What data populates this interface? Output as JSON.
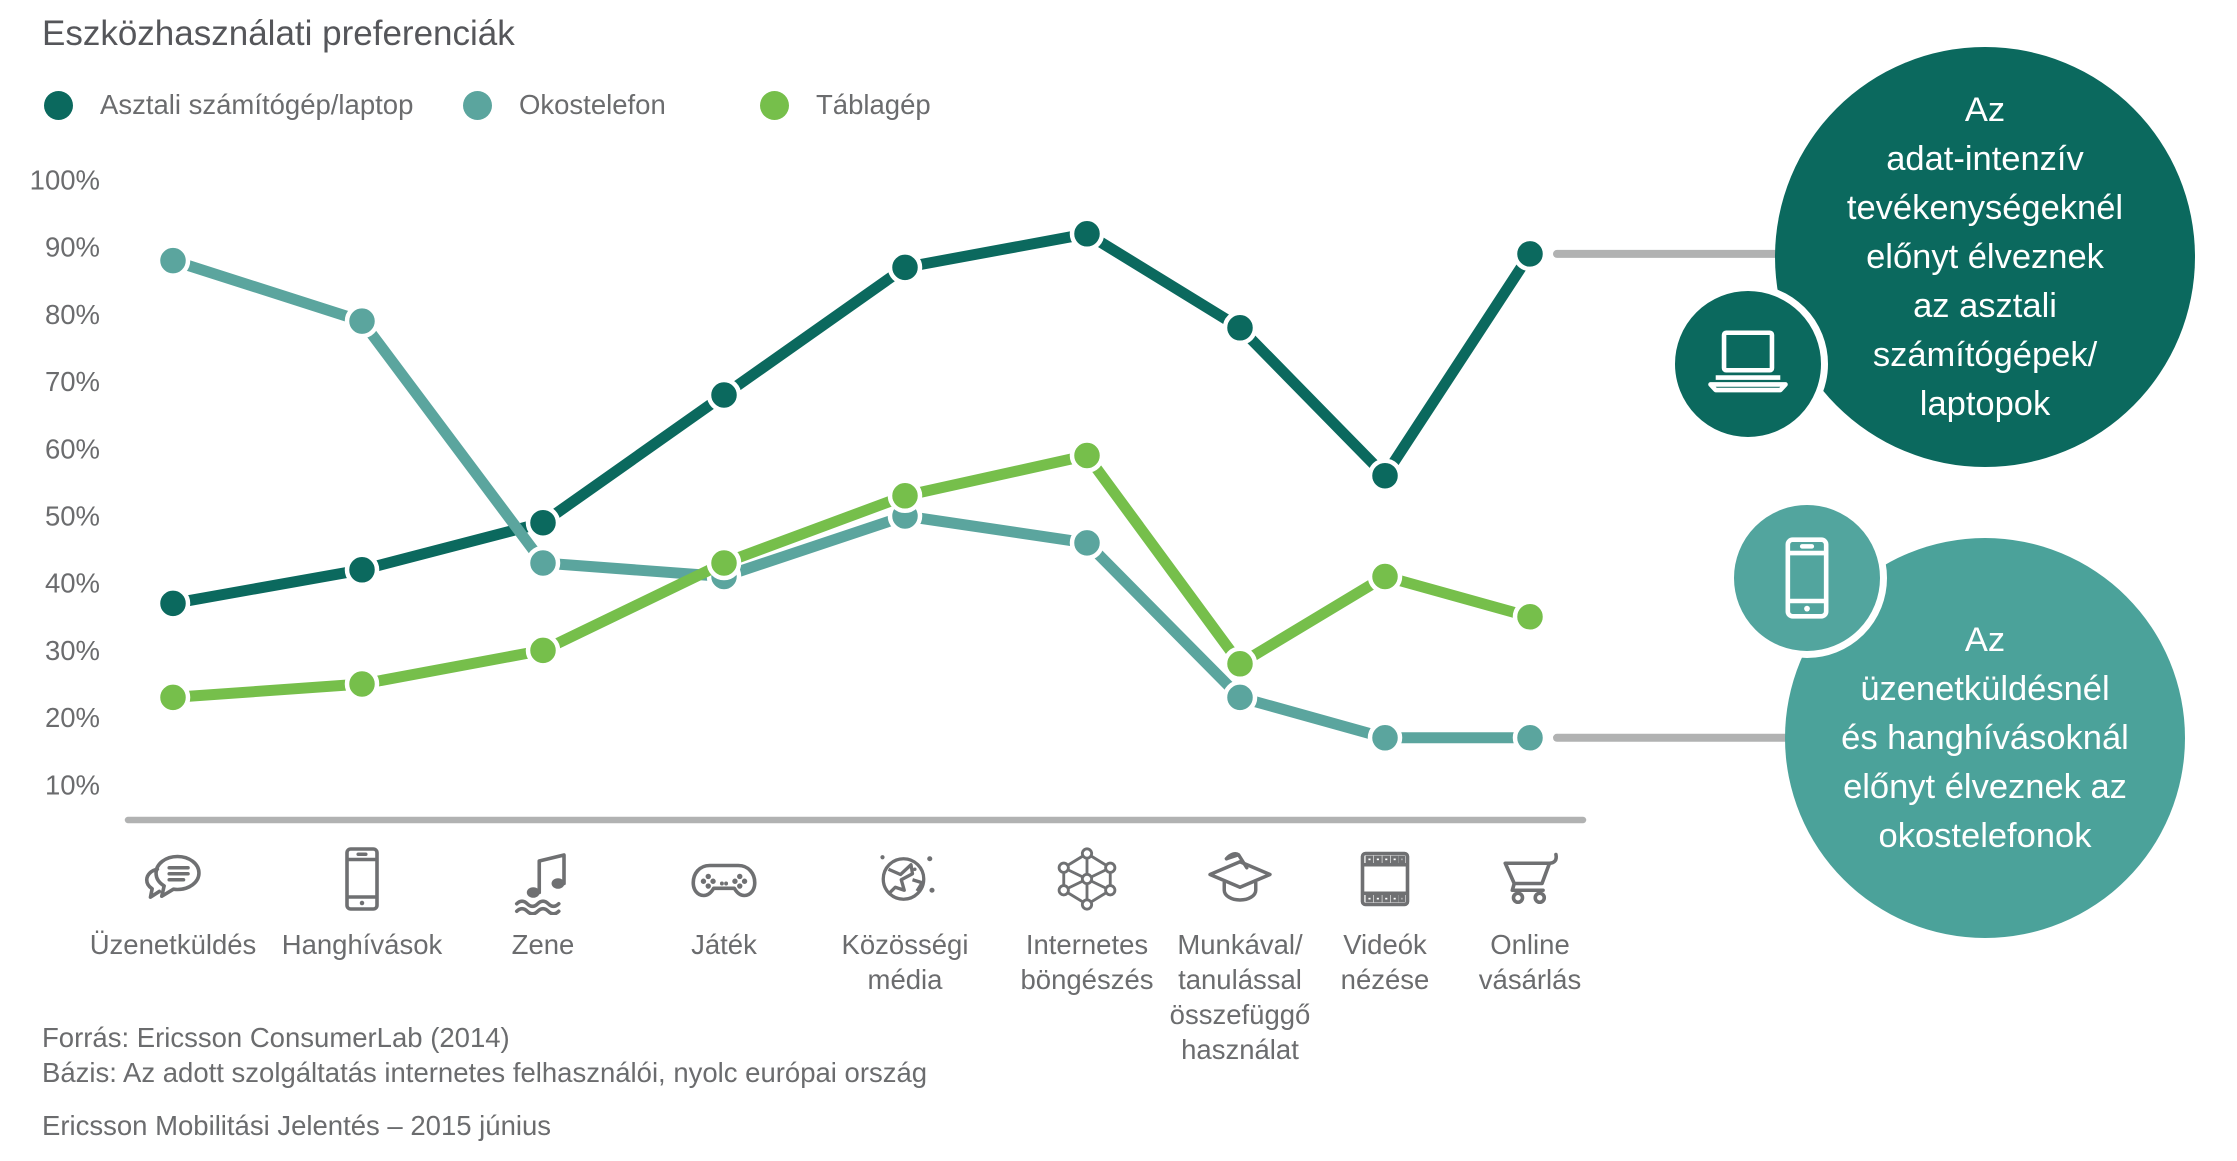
{
  "title": "Eszközhasználati preferenciák",
  "legend": [
    {
      "label": "Asztali számítógép/laptop",
      "color": "#0b695e"
    },
    {
      "label": "Okostelefon",
      "color": "#5ba59e"
    },
    {
      "label": "Táblagép",
      "color": "#76bf4b"
    }
  ],
  "chart_data": {
    "type": "line",
    "title": "Eszközhasználati preferenciák",
    "categories": [
      "Üzenetküldés",
      "Hanghívások",
      "Zene",
      "Játék",
      "Közösségi\nmédia",
      "Internetes\nböngészés",
      "Munkával/\ntanulással\nösszefüggő\nhasználat",
      "Videók\nnézése",
      "Online\nvásárlás"
    ],
    "category_icons": [
      "chat-icon",
      "smartphone-icon",
      "music-icon",
      "gamepad-icon",
      "globe-icon",
      "network-icon",
      "graduation-cap-icon",
      "film-strip-icon",
      "shopping-cart-icon"
    ],
    "y_ticks": [
      "100%",
      "90%",
      "80%",
      "70%",
      "60%",
      "50%",
      "40%",
      "30%",
      "20%",
      "10%"
    ],
    "ylim": [
      0,
      100
    ],
    "grid": false,
    "legend_position": "top-left",
    "series": [
      {
        "name": "Asztali számítógép/laptop",
        "color": "#0b695e",
        "values": [
          37,
          42,
          49,
          68,
          87,
          92,
          78,
          56,
          89
        ]
      },
      {
        "name": "Okostelefon",
        "color": "#5ba59e",
        "values": [
          88,
          79,
          43,
          41,
          50,
          46,
          23,
          17,
          17
        ]
      },
      {
        "name": "Táblagép",
        "color": "#76bf4b",
        "values": [
          23,
          25,
          30,
          43,
          53,
          59,
          28,
          41,
          35
        ]
      }
    ]
  },
  "callouts": [
    {
      "icon": "laptop-icon",
      "color": "#0b695e",
      "icon_circle_color": "#0b695e",
      "text": "Az\nadat-intenzív\ntevékenységeknél\nelőnyt élveznek\naz asztali\nszámítógépek/\nlaptopok"
    },
    {
      "icon": "smartphone-icon",
      "color": "#4ba29a",
      "icon_circle_color": "#52a59e",
      "text": "Az\nüzenetküldésnél\nés hanghívásoknál\nelőnyt élveznek az\nokostelefonok"
    }
  ],
  "footer": {
    "source": "Forrás: Ericsson ConsumerLab (2014)",
    "basis": "Bázis: Az adott szolgáltatás internetes felhasználói, nyolc európai ország",
    "report": "Ericsson Mobilitási Jelentés – 2015 június"
  },
  "style_colors": {
    "axis_gray": "#b1b2b2",
    "icon_gray": "#6f7072",
    "text_gray": "#6b6c6e"
  }
}
